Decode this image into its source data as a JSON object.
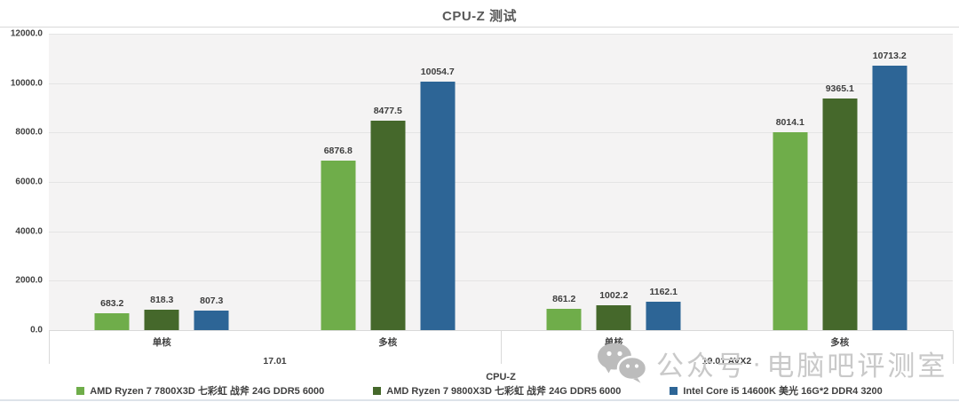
{
  "chart_data": {
    "type": "bar",
    "title": "CPU-Z 测试",
    "xlabel": "CPU-Z",
    "ylim": [
      0,
      12000
    ],
    "yticks": [
      "0.0",
      "2000.0",
      "4000.0",
      "6000.0",
      "8000.0",
      "10000.0",
      "12000.0"
    ],
    "grid": "horizontal",
    "legend_position": "bottom",
    "plot_background": "#f4f3f3",
    "groups": [
      {
        "label": "17.01",
        "subgroups": [
          {
            "label": "单核",
            "values": [
              683.2,
              818.3,
              807.3
            ]
          },
          {
            "label": "多核",
            "values": [
              6876.8,
              8477.5,
              10054.7
            ]
          }
        ]
      },
      {
        "label": "19.01 AVX2",
        "subgroups": [
          {
            "label": "单核",
            "values": [
              861.2,
              1002.2,
              1162.1
            ]
          },
          {
            "label": "多核",
            "values": [
              8014.1,
              9365.1,
              10713.2
            ]
          }
        ]
      }
    ],
    "series": [
      {
        "name": "AMD Ryzen 7 7800X3D 七彩虹 战斧 24G DDR5 6000",
        "color": "#6fad4a"
      },
      {
        "name": "AMD Ryzen 7 9800X3D 七彩虹 战斧 24G DDR5 6000",
        "color": "#45682b"
      },
      {
        "name": "Intel Core i5 14600K 美光 16G*2 DDR4 3200",
        "color": "#2d6596"
      }
    ]
  },
  "watermark": {
    "icon": "wechat-icon",
    "text1": "公众号",
    "separator": "·",
    "text2": "电脑吧评测室",
    "color": "#c9c9c9"
  }
}
